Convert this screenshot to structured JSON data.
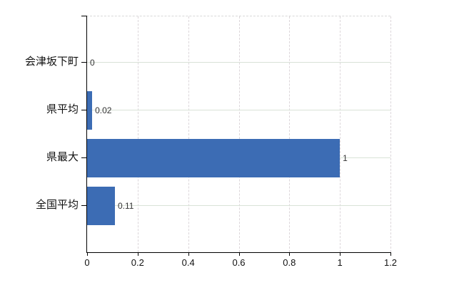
{
  "chart_data": {
    "type": "bar",
    "orientation": "horizontal",
    "title": "",
    "categories": [
      "会津坂下町",
      "県平均",
      "県最大",
      "全国平均"
    ],
    "values": [
      0,
      0.02,
      1,
      0.11
    ],
    "value_labels": [
      "0",
      "0.02",
      "1",
      "0.11"
    ],
    "xticks": [
      "0",
      "0.2",
      "0.4",
      "0.6",
      "0.8",
      "1",
      "1.2"
    ],
    "xlim": [
      0,
      1.2
    ],
    "xlabel": "",
    "ylabel": "",
    "grid": true,
    "legend": false,
    "bar_color": "#3c6cb4",
    "axis_color": "#000000",
    "vgrid_color": "#dcd6da",
    "hgrid_color": "#d9e2d7",
    "value_label_color": "#333333",
    "background": "#ffffff"
  }
}
